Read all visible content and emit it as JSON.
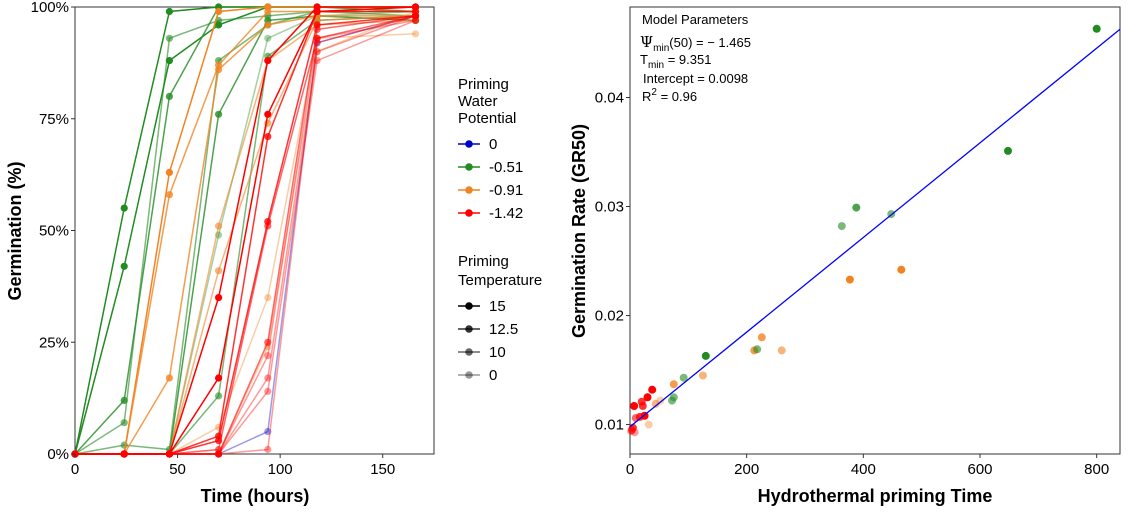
{
  "left_chart": {
    "xlabel": "Time (hours)",
    "ylabel": "Germination (%)",
    "x_ticks": [
      "0",
      "50",
      "100",
      "150"
    ],
    "y_ticks": [
      "0%",
      "25%",
      "50%",
      "75%",
      "100%"
    ],
    "legend_wp": {
      "title_lines": [
        "Priming",
        "Water",
        "Potential"
      ],
      "items": [
        "0",
        "-0.51",
        "-0.91",
        "-1.42"
      ]
    },
    "legend_temp": {
      "title_lines": [
        "Priming",
        "Temperature"
      ],
      "items": [
        "15",
        "12.5",
        "10",
        "0"
      ]
    }
  },
  "right_chart": {
    "xlabel": "Hydrothermal priming Time",
    "ylabel": "Germination Rate (GR50)",
    "x_ticks": [
      "0",
      "200",
      "400",
      "600",
      "800"
    ],
    "y_ticks": [
      "0.01",
      "0.02",
      "0.03",
      "0.04"
    ],
    "annotation": {
      "title": "Model Parameters",
      "psi_label": "Ψ",
      "psi_sub": "min",
      "psi_rest": "(50) = − 1.465",
      "t_label": "T",
      "t_sub": "min",
      "t_rest": " = 9.351",
      "intercept": "Intercept = 0.0098",
      "r2_base": "R",
      "r2_sup": "2",
      "r2_rest": " = 0.96"
    }
  },
  "colors": {
    "wp_0": "#0000cd",
    "wp_051": "#228b22",
    "wp_091": "#f28322",
    "wp_142": "#ff0000",
    "fit_line": "#0000ff"
  },
  "chart_data": [
    {
      "type": "line",
      "title": "",
      "xlabel": "Time (hours)",
      "ylabel": "Germination (%)",
      "xlim": [
        0,
        175
      ],
      "ylim": [
        0,
        100
      ],
      "x": [
        0,
        24,
        46,
        70,
        94,
        118,
        166
      ],
      "series": [
        {
          "wp": "0",
          "temp": "0",
          "values": [
            0,
            0,
            0,
            0,
            5,
            92,
            98
          ]
        },
        {
          "wp": "-0.51",
          "temp": "15",
          "values": [
            0,
            55,
            99,
            100,
            100,
            100,
            100
          ]
        },
        {
          "wp": "-0.51",
          "temp": "15",
          "values": [
            0,
            42,
            88,
            96,
            100,
            100,
            100
          ]
        },
        {
          "wp": "-0.51",
          "temp": "12.5",
          "values": [
            0,
            12,
            80,
            100,
            100,
            100,
            99
          ]
        },
        {
          "wp": "-0.51",
          "temp": "10",
          "values": [
            0,
            7,
            93,
            97,
            98,
            99,
            98
          ]
        },
        {
          "wp": "-0.51",
          "temp": "10",
          "values": [
            0,
            2,
            1,
            88,
            96,
            99,
            99
          ]
        },
        {
          "wp": "-0.51",
          "temp": "12.5",
          "values": [
            0,
            0,
            0,
            76,
            97,
            98,
            97
          ]
        },
        {
          "wp": "-0.51",
          "temp": "0",
          "values": [
            0,
            0,
            0,
            49,
            93,
            98,
            99
          ]
        },
        {
          "wp": "-0.51",
          "temp": "10",
          "values": [
            0,
            0,
            0,
            13,
            89,
            97,
            98
          ]
        },
        {
          "wp": "-0.91",
          "temp": "15",
          "values": [
            0,
            0,
            63,
            99,
            100,
            100,
            100
          ]
        },
        {
          "wp": "-0.91",
          "temp": "12.5",
          "values": [
            0,
            0,
            58,
            87,
            99,
            99,
            99
          ]
        },
        {
          "wp": "-0.91",
          "temp": "12.5",
          "values": [
            0,
            0,
            17,
            86,
            96,
            98,
            98
          ]
        },
        {
          "wp": "-0.91",
          "temp": "10",
          "values": [
            0,
            0,
            0,
            51,
            88,
            96,
            97
          ]
        },
        {
          "wp": "-0.91",
          "temp": "10",
          "values": [
            0,
            0,
            0,
            41,
            74,
            97,
            98
          ]
        },
        {
          "wp": "-0.91",
          "temp": "0",
          "values": [
            0,
            0,
            0,
            6,
            35,
            93,
            94
          ]
        },
        {
          "wp": "-0.91",
          "temp": "0",
          "values": [
            0,
            0,
            0,
            0,
            24,
            90,
            99
          ]
        },
        {
          "wp": "-1.42",
          "temp": "15",
          "values": [
            0,
            0,
            0,
            35,
            88,
            100,
            100
          ]
        },
        {
          "wp": "-1.42",
          "temp": "15",
          "values": [
            0,
            0,
            0,
            17,
            76,
            99,
            100
          ]
        },
        {
          "wp": "-1.42",
          "temp": "12.5",
          "values": [
            0,
            0,
            0,
            4,
            71,
            99,
            99
          ]
        },
        {
          "wp": "-1.42",
          "temp": "12.5",
          "values": [
            0,
            0,
            0,
            3,
            52,
            96,
            98
          ]
        },
        {
          "wp": "-1.42",
          "temp": "10",
          "values": [
            0,
            0,
            0,
            1,
            51,
            93,
            98
          ]
        },
        {
          "wp": "-1.42",
          "temp": "10",
          "values": [
            0,
            0,
            0,
            0,
            25,
            95,
            98
          ]
        },
        {
          "wp": "-1.42",
          "temp": "0",
          "values": [
            0,
            0,
            0,
            0,
            22,
            93,
            97
          ]
        },
        {
          "wp": "-1.42",
          "temp": "0",
          "values": [
            0,
            0,
            0,
            0,
            17,
            90,
            98
          ]
        },
        {
          "wp": "-1.42",
          "temp": "0",
          "values": [
            0,
            0,
            0,
            0,
            14,
            88,
            97
          ]
        },
        {
          "wp": "-1.42",
          "temp": "0",
          "values": [
            0,
            0,
            0,
            0,
            1,
            92,
            98
          ]
        }
      ]
    },
    {
      "type": "scatter",
      "title": "",
      "xlabel": "Hydrothermal priming Time",
      "ylabel": "Germination Rate (GR50)",
      "xlim": [
        0,
        840
      ],
      "ylim": [
        0.0073,
        0.0483
      ],
      "fit_line": {
        "intercept": 0.0098,
        "slope": 4.34e-05
      },
      "points": [
        {
          "x": 800,
          "y": 0.0463,
          "wp": "-0.51",
          "temp": "15"
        },
        {
          "x": 648,
          "y": 0.0351,
          "wp": "-0.51",
          "temp": "15"
        },
        {
          "x": 388,
          "y": 0.0299,
          "wp": "-0.51",
          "temp": "12.5"
        },
        {
          "x": 448,
          "y": 0.0293,
          "wp": "-0.51",
          "temp": "10"
        },
        {
          "x": 363,
          "y": 0.0282,
          "wp": "-0.51",
          "temp": "10"
        },
        {
          "x": 465,
          "y": 0.0242,
          "wp": "-0.91",
          "temp": "15"
        },
        {
          "x": 377,
          "y": 0.0233,
          "wp": "-0.91",
          "temp": "15"
        },
        {
          "x": 226,
          "y": 0.018,
          "wp": "-0.91",
          "temp": "12.5"
        },
        {
          "x": 213,
          "y": 0.0168,
          "wp": "-0.91",
          "temp": "12.5"
        },
        {
          "x": 260,
          "y": 0.0168,
          "wp": "-0.91",
          "temp": "10"
        },
        {
          "x": 218,
          "y": 0.0169,
          "wp": "-0.51",
          "temp": "10"
        },
        {
          "x": 130,
          "y": 0.0163,
          "wp": "-0.51",
          "temp": "15"
        },
        {
          "x": 92,
          "y": 0.0143,
          "wp": "-0.51",
          "temp": "10"
        },
        {
          "x": 125,
          "y": 0.0145,
          "wp": "-0.91",
          "temp": "10"
        },
        {
          "x": 75,
          "y": 0.0137,
          "wp": "-0.91",
          "temp": "12.5"
        },
        {
          "x": 75,
          "y": 0.0125,
          "wp": "-0.51",
          "temp": "10"
        },
        {
          "x": 72,
          "y": 0.0122,
          "wp": "-0.51",
          "temp": "10"
        },
        {
          "x": 52,
          "y": 0.0122,
          "wp": "-0.91",
          "temp": "0"
        },
        {
          "x": 44,
          "y": 0.0119,
          "wp": "-0.91",
          "temp": "10"
        },
        {
          "x": 38,
          "y": 0.0132,
          "wp": "-1.42",
          "temp": "15"
        },
        {
          "x": 30,
          "y": 0.0125,
          "wp": "-1.42",
          "temp": "15"
        },
        {
          "x": 20,
          "y": 0.0121,
          "wp": "-1.42",
          "temp": "12.5"
        },
        {
          "x": 22,
          "y": 0.0117,
          "wp": "-1.42",
          "temp": "12.5"
        },
        {
          "x": 7,
          "y": 0.0117,
          "wp": "-1.42",
          "temp": "15"
        },
        {
          "x": 25,
          "y": 0.0108,
          "wp": "-1.42",
          "temp": "15"
        },
        {
          "x": 17,
          "y": 0.0107,
          "wp": "-1.42",
          "temp": "12.5"
        },
        {
          "x": 10,
          "y": 0.0106,
          "wp": "-1.42",
          "temp": "10"
        },
        {
          "x": 32,
          "y": 0.01,
          "wp": "-0.91",
          "temp": "0"
        },
        {
          "x": 5,
          "y": 0.0097,
          "wp": "-1.42",
          "temp": "12.5"
        },
        {
          "x": 3,
          "y": 0.0095,
          "wp": "-1.42",
          "temp": "10"
        },
        {
          "x": 2,
          "y": 0.0094,
          "wp": "-1.42",
          "temp": "0"
        },
        {
          "x": 8,
          "y": 0.0093,
          "wp": "-1.42",
          "temp": "0"
        }
      ]
    }
  ]
}
